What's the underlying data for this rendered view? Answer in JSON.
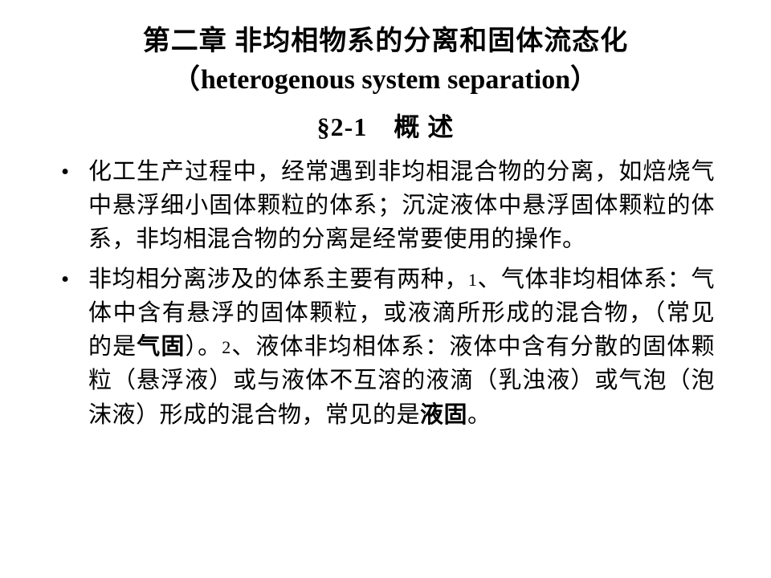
{
  "title": {
    "line1": "第二章 非均相物系的分离和固体流态化",
    "open_paren": "（",
    "english": "heterogenous system separation",
    "close_paren": "）"
  },
  "section": "§2-1　概  述",
  "bullets": {
    "p1": "化工生产过程中，经常遇到非均相混合物的分离，如焙烧气中悬浮细小固体颗粒的体系；沉淀液体中悬浮固体颗粒的体系，非均相混合物的分离是经常要使用的操作。",
    "p2": {
      "a": "非均相分离涉及的体系主要有两种，",
      "n1": "1",
      "b": "、气体非均相体系：气体中含有悬浮的固体颗粒，或液滴所形成的混合物，（常见的是",
      "bold1": "气固",
      "c": "）。",
      "n2": "2",
      "d": "、液体非均相体系：液体中含有分散的固体颗粒（悬浮液）或与液体不互溶的液滴（乳浊液）或气泡（泡沫液）形成的混合物，常见的是",
      "bold2": "液固",
      "e": "。"
    }
  },
  "style": {
    "background_color": "#ffffff",
    "text_color": "#000000",
    "title_fontsize": 34,
    "section_fontsize": 32,
    "body_fontsize": 29,
    "line_height": 1.45
  }
}
